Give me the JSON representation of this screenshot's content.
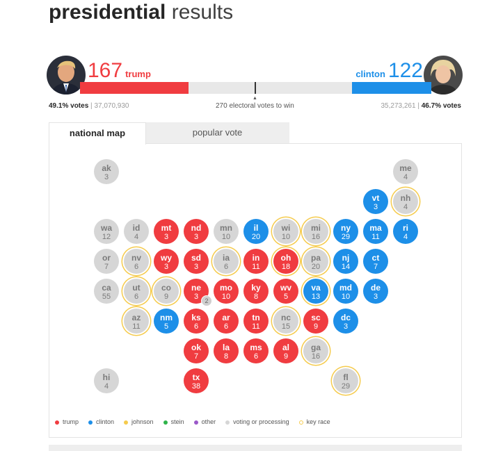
{
  "title": {
    "bold": "presidential",
    "light": "results"
  },
  "colors": {
    "trump": "#f03c40",
    "clinton": "#1d8fe8",
    "undecided": "#d6d6d6",
    "key_race": "#f5cb4d",
    "johnson": "#f5cb4d",
    "stein": "#2fb34a",
    "other": "#9b59c9"
  },
  "candidates": {
    "trump": {
      "name": "trump",
      "electoral_votes": "167",
      "votes_pct": "49.1% votes",
      "votes_count": "37,070,930",
      "bar_fraction": 0.309
    },
    "clinton": {
      "name": "clinton",
      "electoral_votes": "122",
      "votes_pct": "46.7% votes",
      "votes_count": "35,273,261",
      "bar_fraction": 0.226
    }
  },
  "center_note": "270 electoral votes to win",
  "tabs": [
    {
      "label": "national map",
      "active": true
    },
    {
      "label": "popular vote",
      "active": false
    }
  ],
  "states": [
    {
      "abbr": "ak",
      "ev": "3",
      "status": "u",
      "key": false
    },
    {
      "abbr": "me",
      "ev": "4",
      "status": "u",
      "key": false
    },
    {
      "abbr": "vt",
      "ev": "3",
      "status": "d",
      "key": false
    },
    {
      "abbr": "nh",
      "ev": "4",
      "status": "u",
      "key": true
    },
    {
      "abbr": "wa",
      "ev": "12",
      "status": "u",
      "key": false
    },
    {
      "abbr": "id",
      "ev": "4",
      "status": "u",
      "key": false
    },
    {
      "abbr": "mt",
      "ev": "3",
      "status": "r",
      "key": false
    },
    {
      "abbr": "nd",
      "ev": "3",
      "status": "r",
      "key": false
    },
    {
      "abbr": "mn",
      "ev": "10",
      "status": "u",
      "key": false
    },
    {
      "abbr": "il",
      "ev": "20",
      "status": "d",
      "key": false
    },
    {
      "abbr": "wi",
      "ev": "10",
      "status": "u",
      "key": true
    },
    {
      "abbr": "mi",
      "ev": "16",
      "status": "u",
      "key": true
    },
    {
      "abbr": "ny",
      "ev": "29",
      "status": "d",
      "key": false
    },
    {
      "abbr": "ma",
      "ev": "11",
      "status": "d",
      "key": false
    },
    {
      "abbr": "ri",
      "ev": "4",
      "status": "d",
      "key": false
    },
    {
      "abbr": "or",
      "ev": "7",
      "status": "u",
      "key": false
    },
    {
      "abbr": "nv",
      "ev": "6",
      "status": "u",
      "key": true
    },
    {
      "abbr": "wy",
      "ev": "3",
      "status": "r",
      "key": false
    },
    {
      "abbr": "sd",
      "ev": "3",
      "status": "r",
      "key": false
    },
    {
      "abbr": "ia",
      "ev": "6",
      "status": "u",
      "key": true
    },
    {
      "abbr": "in",
      "ev": "11",
      "status": "r",
      "key": false
    },
    {
      "abbr": "oh",
      "ev": "18",
      "status": "r",
      "key": true
    },
    {
      "abbr": "pa",
      "ev": "20",
      "status": "u",
      "key": true
    },
    {
      "abbr": "nj",
      "ev": "14",
      "status": "d",
      "key": false
    },
    {
      "abbr": "ct",
      "ev": "7",
      "status": "d",
      "key": false
    },
    {
      "abbr": "ca",
      "ev": "55",
      "status": "u",
      "key": false
    },
    {
      "abbr": "ut",
      "ev": "6",
      "status": "u",
      "key": true
    },
    {
      "abbr": "co",
      "ev": "9",
      "status": "u",
      "key": true
    },
    {
      "abbr": "ne",
      "ev": "3",
      "status": "r",
      "key": false,
      "split": "2"
    },
    {
      "abbr": "mo",
      "ev": "10",
      "status": "r",
      "key": false
    },
    {
      "abbr": "ky",
      "ev": "8",
      "status": "r",
      "key": false
    },
    {
      "abbr": "wv",
      "ev": "5",
      "status": "r",
      "key": false
    },
    {
      "abbr": "va",
      "ev": "13",
      "status": "d",
      "key": true
    },
    {
      "abbr": "md",
      "ev": "10",
      "status": "d",
      "key": false
    },
    {
      "abbr": "de",
      "ev": "3",
      "status": "d",
      "key": false
    },
    {
      "abbr": "az",
      "ev": "11",
      "status": "u",
      "key": true
    },
    {
      "abbr": "nm",
      "ev": "5",
      "status": "d",
      "key": false
    },
    {
      "abbr": "ks",
      "ev": "6",
      "status": "r",
      "key": false
    },
    {
      "abbr": "ar",
      "ev": "6",
      "status": "r",
      "key": false
    },
    {
      "abbr": "tn",
      "ev": "11",
      "status": "r",
      "key": false
    },
    {
      "abbr": "nc",
      "ev": "15",
      "status": "u",
      "key": true
    },
    {
      "abbr": "sc",
      "ev": "9",
      "status": "r",
      "key": false
    },
    {
      "abbr": "dc",
      "ev": "3",
      "status": "d",
      "key": false
    },
    {
      "abbr": "ok",
      "ev": "7",
      "status": "r",
      "key": false
    },
    {
      "abbr": "la",
      "ev": "8",
      "status": "r",
      "key": false
    },
    {
      "abbr": "ms",
      "ev": "6",
      "status": "r",
      "key": false
    },
    {
      "abbr": "al",
      "ev": "9",
      "status": "r",
      "key": false
    },
    {
      "abbr": "ga",
      "ev": "16",
      "status": "u",
      "key": true
    },
    {
      "abbr": "hi",
      "ev": "4",
      "status": "u",
      "key": false
    },
    {
      "abbr": "tx",
      "ev": "38",
      "status": "r",
      "key": false
    },
    {
      "abbr": "fl",
      "ev": "29",
      "status": "u",
      "key": true
    }
  ],
  "legend": [
    {
      "label": "trump",
      "kind": "dot",
      "color": "#f03c40"
    },
    {
      "label": "clinton",
      "kind": "dot",
      "color": "#1d8fe8"
    },
    {
      "label": "johnson",
      "kind": "dot",
      "color": "#f5cb4d"
    },
    {
      "label": "stein",
      "kind": "dot",
      "color": "#2fb34a"
    },
    {
      "label": "other",
      "kind": "dot",
      "color": "#9b59c9"
    },
    {
      "label": "voting or processing",
      "kind": "dot",
      "color": "#d6d6d6"
    },
    {
      "label": "key race",
      "kind": "ring",
      "color": "#f5cb4d"
    }
  ]
}
